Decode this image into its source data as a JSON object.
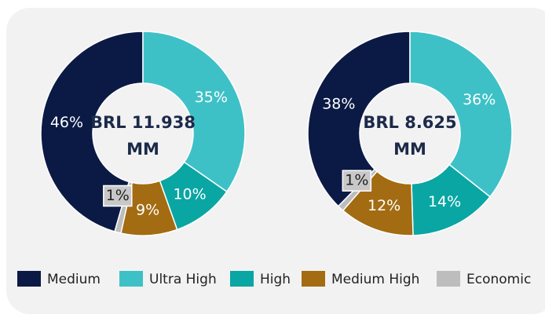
{
  "chart_data": [
    {
      "type": "pie",
      "donut": true,
      "center_label": [
        "BRL 11.938",
        "MM"
      ],
      "categories": [
        "Medium",
        "Ultra High",
        "High",
        "Medium High",
        "Economic"
      ],
      "values": [
        46,
        35,
        10,
        9,
        1
      ],
      "value_labels": [
        "46%",
        "35%",
        "10%",
        "9%",
        "1%"
      ],
      "colors": [
        "#0b1a45",
        "#3ec1c6",
        "#0aa6a3",
        "#a36c12",
        "#bdbdbd"
      ]
    },
    {
      "type": "pie",
      "donut": true,
      "center_label": [
        "BRL 8.625",
        "MM"
      ],
      "categories": [
        "Medium",
        "Ultra High",
        "High",
        "Medium High",
        "Economic"
      ],
      "values": [
        38,
        36,
        14,
        12,
        1
      ],
      "value_labels": [
        "38%",
        "36%",
        "14%",
        "12%",
        "1%"
      ],
      "colors": [
        "#0b1a45",
        "#3ec1c6",
        "#0aa6a3",
        "#a36c12",
        "#bdbdbd"
      ]
    }
  ]
}
